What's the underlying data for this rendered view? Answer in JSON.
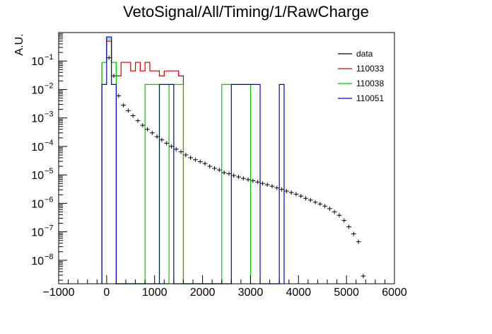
{
  "chart_data": {
    "type": "histogram",
    "title": "VetoSignal/All/Timing/1/RawCharge",
    "xlabel": "",
    "ylabel": "A.U.",
    "xlim": [
      -1000,
      6000
    ],
    "ylim": [
      1.5e-09,
      1.0
    ],
    "yscale": "log",
    "grid": false,
    "legend_position": "top-right",
    "x_ticks": [
      -1000,
      0,
      1000,
      2000,
      3000,
      4000,
      5000,
      6000
    ],
    "x_tick_labels": [
      "−1000",
      "0",
      "1000",
      "2000",
      "3000",
      "4000",
      "5000",
      "6000"
    ],
    "y_ticks": [
      {
        "mant": "10",
        "exp": "−8",
        "value": 1e-08
      },
      {
        "mant": "10",
        "exp": "−7",
        "value": 1e-07
      },
      {
        "mant": "10",
        "exp": "−6",
        "value": 1e-06
      },
      {
        "mant": "10",
        "exp": "−5",
        "value": 1e-05
      },
      {
        "mant": "10",
        "exp": "−4",
        "value": 0.0001
      },
      {
        "mant": "10",
        "exp": "−3",
        "value": 0.001
      },
      {
        "mant": "10",
        "exp": "−2",
        "value": 0.01
      },
      {
        "mant": "10",
        "exp": "−1",
        "value": 0.1
      }
    ],
    "series": [
      {
        "name": "data",
        "color": "#000000",
        "style": "points",
        "bin_width": 100,
        "x": [
          0,
          100,
          200,
          300,
          400,
          500,
          600,
          700,
          800,
          900,
          1000,
          1100,
          1200,
          1300,
          1400,
          1500,
          1600,
          1700,
          1800,
          1900,
          2000,
          2100,
          2200,
          2300,
          2400,
          2500,
          2600,
          2700,
          2800,
          2900,
          3000,
          3100,
          3200,
          3300,
          3400,
          3500,
          3600,
          3700,
          3800,
          3900,
          4000,
          4100,
          4200,
          4300,
          4400,
          4500,
          4600,
          4700,
          4800,
          4900,
          5000,
          5100,
          5200,
          5300
        ],
        "y": [
          0.13,
          0.03,
          0.006,
          0.0028,
          0.0018,
          0.0012,
          0.0008,
          0.00055,
          0.0004,
          0.0003,
          0.00022,
          0.00017,
          0.00013,
          0.0001,
          8e-05,
          6.5e-05,
          5e-05,
          4e-05,
          3.4e-05,
          2.9e-05,
          2.5e-05,
          2e-05,
          1.7e-05,
          1.5e-05,
          1.2e-05,
          1.1e-05,
          9.5e-06,
          8.5e-06,
          7.5e-06,
          6.8e-06,
          6.2e-06,
          5.6e-06,
          5e-06,
          4.5e-06,
          4e-06,
          3.5e-06,
          3.1e-06,
          2.7e-06,
          2.4e-06,
          2.1e-06,
          1.8e-06,
          1.5e-06,
          1.3e-06,
          1.1e-06,
          9.5e-07,
          8e-07,
          6.5e-07,
          5e-07,
          3.8e-07,
          2.5e-07,
          1.5e-07,
          8.5e-08,
          4.5e-08,
          2.8e-09
        ]
      },
      {
        "name": "110033",
        "color": "#cc0000",
        "style": "step",
        "edges": [
          -100,
          0,
          100,
          200,
          300,
          400,
          500,
          600,
          700,
          800,
          900,
          1000,
          1100,
          1200,
          1300,
          1400,
          1500,
          1600
        ],
        "y": [
          0.09,
          0.5,
          0.09,
          0.03,
          0.09,
          0.09,
          0.045,
          0.09,
          0.045,
          0.09,
          0.045,
          0.045,
          0.03,
          0.045,
          0.045,
          0.045,
          0.03
        ]
      },
      {
        "name": "110038",
        "color": "#00cc00",
        "style": "step",
        "edges": [
          -100,
          0,
          100,
          200,
          300,
          400,
          500,
          600,
          700,
          800,
          900,
          1000,
          1100,
          1200,
          1300,
          1400,
          1500,
          1600,
          1700,
          1800,
          1900,
          2000,
          2100,
          2200,
          2300,
          2400,
          2500,
          2600,
          2700,
          2800,
          2900,
          3000,
          3100
        ],
        "y": [
          0.09,
          0.6,
          0.09,
          0,
          0,
          0,
          0,
          0,
          0,
          0.015,
          0.015,
          0.015,
          0,
          0,
          0.015,
          0.015,
          0.015,
          0,
          0,
          0,
          0,
          0,
          0,
          0,
          0,
          0.015,
          0.015,
          0.015,
          0.015,
          0.015,
          0.015,
          0
        ]
      },
      {
        "name": "110051",
        "color": "#0000cc",
        "style": "step",
        "edges": [
          -100,
          0,
          100,
          200,
          300,
          400,
          500,
          600,
          700,
          800,
          900,
          1000,
          1100,
          1200,
          1300,
          1400,
          1500,
          1600,
          1700,
          1800,
          1900,
          2000,
          2100,
          2200,
          2300,
          2400,
          2500,
          2600,
          2700,
          2800,
          2900,
          3000,
          3100,
          3200,
          3300,
          3400,
          3500,
          3600,
          3700
        ],
        "y": [
          0.015,
          0.7,
          0.015,
          0,
          0,
          0,
          0,
          0,
          0,
          0,
          0,
          0,
          0.015,
          0.015,
          0.015,
          0,
          0,
          0,
          0,
          0,
          0,
          0,
          0,
          0,
          0,
          0,
          0,
          0.015,
          0.015,
          0.015,
          0.015,
          0.015,
          0.015,
          0,
          0,
          0,
          0,
          0.015
        ]
      }
    ]
  }
}
